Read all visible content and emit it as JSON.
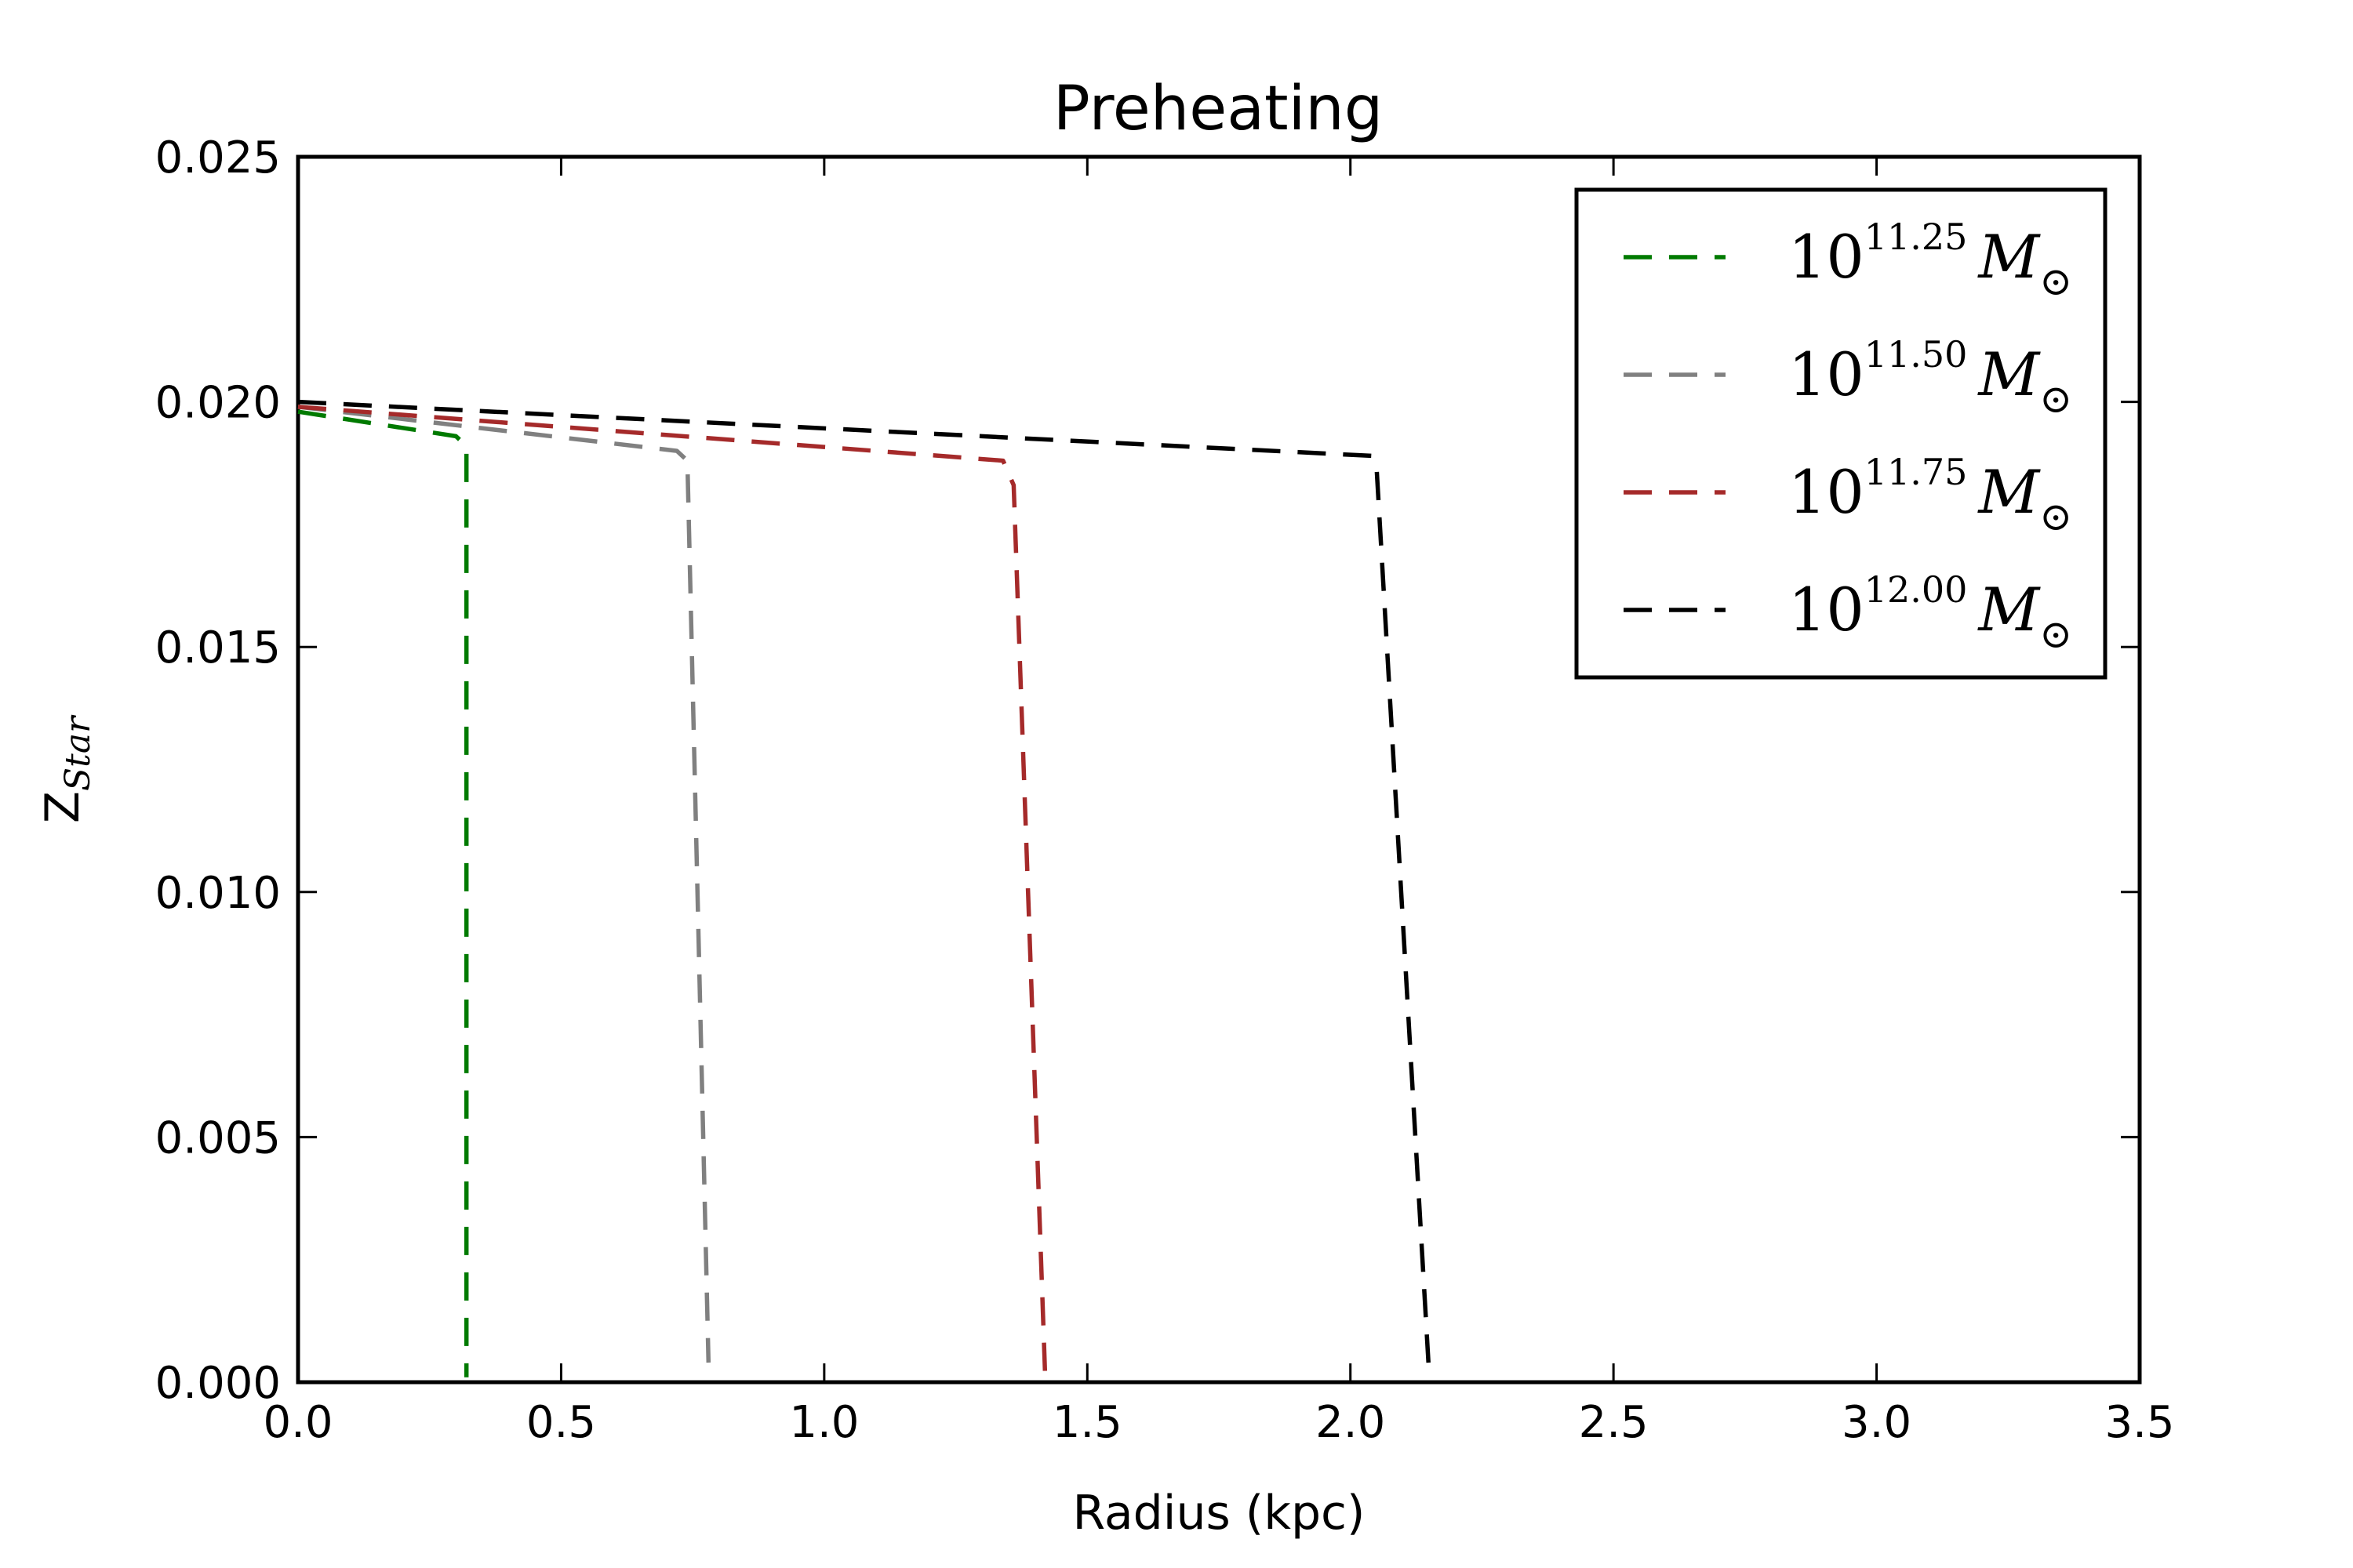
{
  "chart_data": {
    "type": "line",
    "title": "Preheating",
    "xlabel": "Radius (kpc)",
    "ylabel": "Z",
    "ylabel_subscript": "Star",
    "xlim": [
      0.0,
      3.5
    ],
    "ylim": [
      0.0,
      0.025
    ],
    "xticks": [
      "0.0",
      "0.5",
      "1.0",
      "1.5",
      "2.0",
      "2.5",
      "3.0",
      "3.5"
    ],
    "yticks": [
      "0.000",
      "0.005",
      "0.010",
      "0.015",
      "0.020",
      "0.025"
    ],
    "grid": false,
    "legend_position": "top-right",
    "line_style": "dashed",
    "series": [
      {
        "name": "10^{11.25} M_sun",
        "legend_base": "10",
        "legend_exp": "11.25",
        "legend_symbol": "M",
        "legend_sub": "⊙",
        "color": "#007a00",
        "x": [
          0.0,
          0.3,
          0.32,
          0.32
        ],
        "y": [
          0.0198,
          0.0193,
          0.0191,
          0.0001
        ]
      },
      {
        "name": "10^{11.50} M_sun",
        "legend_base": "10",
        "legend_exp": "11.50",
        "legend_symbol": "M",
        "legend_sub": "⊙",
        "color": "#808080",
        "x": [
          0.0,
          0.72,
          0.74,
          0.78
        ],
        "y": [
          0.0199,
          0.019,
          0.0188,
          0.0004
        ]
      },
      {
        "name": "10^{11.75} M_sun",
        "legend_base": "10",
        "legend_exp": "11.75",
        "legend_symbol": "M",
        "legend_sub": "⊙",
        "color": "#a52a2a",
        "x": [
          0.0,
          1.34,
          1.36,
          1.42
        ],
        "y": [
          0.0199,
          0.0188,
          0.0183,
          0.0001
        ]
      },
      {
        "name": "10^{12.00} M_sun",
        "legend_base": "10",
        "legend_exp": "12.00",
        "legend_symbol": "M",
        "legend_sub": "⊙",
        "color": "#000000",
        "x": [
          0.0,
          2.04,
          2.05,
          2.15
        ],
        "y": [
          0.02,
          0.0189,
          0.0186,
          0.0001
        ]
      }
    ]
  }
}
